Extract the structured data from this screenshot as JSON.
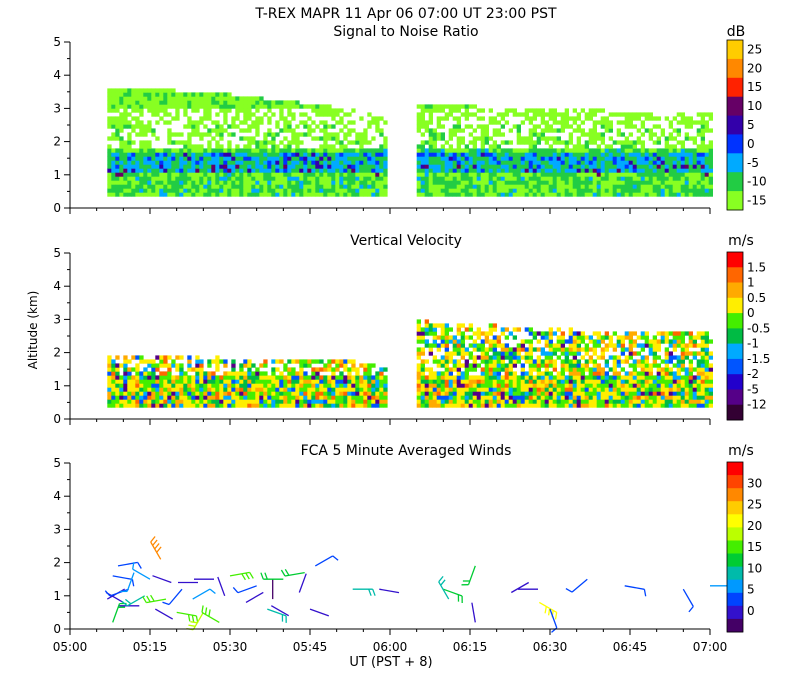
{
  "header": {
    "title": "T-REX   MAPR 11 Apr 06   07:00 UT   23:00   PST"
  },
  "xaxis": {
    "label": "UT  (PST + 8)",
    "tick_labels": [
      "05:00",
      "05:15",
      "05:30",
      "05:45",
      "06:00",
      "06:15",
      "06:30",
      "06:45",
      "07:00"
    ],
    "range_minutes": [
      300,
      420
    ]
  },
  "yaxis": {
    "label": "Altitude  (km)",
    "tick_labels": [
      "0",
      "1",
      "2",
      "3",
      "4",
      "5"
    ],
    "range_km": [
      0,
      5
    ]
  },
  "panels": [
    {
      "title": "Signal to Noise Ratio",
      "unit": "dB",
      "colorbar": {
        "labels": [
          "25",
          "20",
          "15",
          "10",
          "5",
          "0",
          "-5",
          "-10",
          "-15"
        ],
        "colors": [
          "#ffcc00",
          "#ff8800",
          "#ff2200",
          "#660066",
          "#3300aa",
          "#0033ff",
          "#00aaff",
          "#22cc44",
          "#88ff22"
        ]
      }
    },
    {
      "title": "Vertical Velocity",
      "unit": "m/s",
      "colorbar": {
        "labels": [
          "1.5",
          "1",
          "0.5",
          "0",
          "-0.5",
          "-1",
          "-1.5",
          "-2",
          "-5",
          "-12"
        ],
        "colors": [
          "#ff0000",
          "#ff6600",
          "#ffaa00",
          "#ffee00",
          "#44ee00",
          "#00bb44",
          "#00aaff",
          "#0055ff",
          "#2200cc",
          "#550088",
          "#330033"
        ]
      }
    },
    {
      "title": "FCA 5 Minute Averaged Winds",
      "unit": "m/s",
      "colorbar": {
        "labels": [
          "30",
          "25",
          "20",
          "15",
          "10",
          "5",
          "0"
        ],
        "colors": [
          "#ff0000",
          "#ff4400",
          "#ff8800",
          "#ffcc00",
          "#ffff00",
          "#bbff00",
          "#44ee00",
          "#00cc33",
          "#00bbaa",
          "#0099ff",
          "#0044ff",
          "#3311cc",
          "#440066"
        ]
      }
    }
  ],
  "chart_data": [
    {
      "type": "heatmap",
      "title": "Signal to Noise Ratio",
      "colorbar_label": "dB",
      "colorbar_ticks": [
        25,
        20,
        15,
        10,
        5,
        0,
        -5,
        -10,
        -15
      ],
      "x_range_minutes": [
        300,
        420
      ],
      "y_range_km": [
        0,
        5
      ],
      "segments": [
        {
          "start": 307,
          "end": 359,
          "top_km": [
            3.6,
            3.5,
            3.4,
            3.2,
            3.0,
            2.8
          ],
          "bottom_km": 0.35
        },
        {
          "start": 365,
          "end": 420,
          "top_km": [
            3.1,
            3.0,
            3.0,
            2.9,
            2.8,
            2.8
          ],
          "bottom_km": 0.35
        }
      ],
      "bands": [
        {
          "from_km": 0.35,
          "to_km": 1.0,
          "level": -10
        },
        {
          "from_km": 1.0,
          "to_km": 1.6,
          "level": -5
        },
        {
          "from_km": 1.6,
          "to_km": 2.4,
          "level": -10
        },
        {
          "from_km": 2.4,
          "to_km": 3.6,
          "level": -15
        }
      ],
      "xlabel": "UT  (PST + 8)",
      "ylabel": "Altitude  (km)"
    },
    {
      "type": "heatmap",
      "title": "Vertical Velocity",
      "colorbar_label": "m/s",
      "colorbar_ticks": [
        1.5,
        1,
        0.5,
        0,
        -0.5,
        -1,
        -1.5,
        -2,
        -5,
        -12
      ],
      "x_range_minutes": [
        300,
        420
      ],
      "y_range_km": [
        0,
        5
      ],
      "segments": [
        {
          "start": 307,
          "end": 359,
          "top_km": [
            1.9,
            1.8,
            1.8,
            1.7,
            1.8,
            1.5
          ],
          "bottom_km": 0.35
        },
        {
          "start": 365,
          "end": 420,
          "top_km": [
            2.9,
            2.8,
            2.7,
            2.6,
            2.6,
            2.6
          ],
          "bottom_km": 0.35
        }
      ],
      "xlabel": "UT  (PST + 8)",
      "ylabel": "Altitude  (km)"
    },
    {
      "type": "scatter",
      "title": "FCA 5 Minute Averaged Winds",
      "colorbar_label": "m/s",
      "colorbar_ticks": [
        30,
        25,
        20,
        15,
        10,
        5,
        0
      ],
      "x_range_minutes": [
        300,
        420
      ],
      "y_range_km": [
        0,
        5
      ],
      "barbs": [
        {
          "t": 307,
          "alt": 0.9,
          "dir": 60,
          "spd": 4
        },
        {
          "t": 308,
          "alt": 0.2,
          "dir": 20,
          "spd": 13
        },
        {
          "t": 308,
          "alt": 1.6,
          "dir": 100,
          "spd": 5
        },
        {
          "t": 309,
          "alt": 1.9,
          "dir": 80,
          "spd": 6
        },
        {
          "t": 310,
          "alt": 0.8,
          "dir": 300,
          "spd": 3
        },
        {
          "t": 311,
          "alt": 1.2,
          "dir": 250,
          "spd": 5
        },
        {
          "t": 312,
          "alt": 1.7,
          "dir": 200,
          "spd": 8
        },
        {
          "t": 313,
          "alt": 0.7,
          "dir": 270,
          "spd": 2
        },
        {
          "t": 314,
          "alt": 1.0,
          "dir": 240,
          "spd": 10
        },
        {
          "t": 315,
          "alt": 1.5,
          "dir": 300,
          "spd": 7
        },
        {
          "t": 316,
          "alt": 0.6,
          "dir": 120,
          "spd": 4
        },
        {
          "t": 317,
          "alt": 2.1,
          "dir": 330,
          "spd": 27
        },
        {
          "t": 318,
          "alt": 0.9,
          "dir": 260,
          "spd": 15
        },
        {
          "t": 319,
          "alt": 1.4,
          "dir": 290,
          "spd": 3
        },
        {
          "t": 320,
          "alt": 0.5,
          "dir": 100,
          "spd": 16
        },
        {
          "t": 321,
          "alt": 1.2,
          "dir": 220,
          "spd": 5
        },
        {
          "t": 323,
          "alt": 0.9,
          "dir": 60,
          "spd": 8
        },
        {
          "t": 324,
          "alt": 1.4,
          "dir": 270,
          "spd": 2
        },
        {
          "t": 325,
          "alt": 0.5,
          "dir": 210,
          "spd": 18
        },
        {
          "t": 327,
          "alt": 1.5,
          "dir": 270,
          "spd": 4
        },
        {
          "t": 328,
          "alt": 0.2,
          "dir": 300,
          "spd": 17
        },
        {
          "t": 329,
          "alt": 1.0,
          "dir": 340,
          "spd": 3
        },
        {
          "t": 330,
          "alt": 1.6,
          "dir": 80,
          "spd": 16
        },
        {
          "t": 333,
          "alt": 0.8,
          "dir": 60,
          "spd": 2
        },
        {
          "t": 335,
          "alt": 1.3,
          "dir": 250,
          "spd": 5
        },
        {
          "t": 337,
          "alt": 0.6,
          "dir": 110,
          "spd": 12
        },
        {
          "t": 338,
          "alt": 0.9,
          "dir": 0,
          "spd": 1
        },
        {
          "t": 340,
          "alt": 1.5,
          "dir": 270,
          "spd": 14
        },
        {
          "t": 341,
          "alt": 0.4,
          "dir": 300,
          "spd": 3
        },
        {
          "t": 343,
          "alt": 1.1,
          "dir": 20,
          "spd": 4
        },
        {
          "t": 344,
          "alt": 1.7,
          "dir": 260,
          "spd": 14
        },
        {
          "t": 345,
          "alt": 0.6,
          "dir": 110,
          "spd": 4
        },
        {
          "t": 346,
          "alt": 1.9,
          "dir": 60,
          "spd": 5
        },
        {
          "t": 353,
          "alt": 1.2,
          "dir": 90,
          "spd": 12
        },
        {
          "t": 358,
          "alt": 1.2,
          "dir": 100,
          "spd": 4
        },
        {
          "t": 370,
          "alt": 1.2,
          "dir": 110,
          "spd": 13
        },
        {
          "t": 371,
          "alt": 0.9,
          "dir": 330,
          "spd": 12
        },
        {
          "t": 376,
          "alt": 1.9,
          "dir": 200,
          "spd": 14
        },
        {
          "t": 376,
          "alt": 0.2,
          "dir": 350,
          "spd": 2
        },
        {
          "t": 384,
          "alt": 1.2,
          "dir": 90,
          "spd": 3
        },
        {
          "t": 386,
          "alt": 1.4,
          "dir": 240,
          "spd": 4
        },
        {
          "t": 388,
          "alt": 0.8,
          "dir": 120,
          "spd": 22
        },
        {
          "t": 390,
          "alt": 0.6,
          "dir": 160,
          "spd": 6
        },
        {
          "t": 397,
          "alt": 1.5,
          "dir": 230,
          "spd": 5
        },
        {
          "t": 404,
          "alt": 1.3,
          "dir": 100,
          "spd": 6
        },
        {
          "t": 415,
          "alt": 1.2,
          "dir": 150,
          "spd": 5
        },
        {
          "t": 420,
          "alt": 1.3,
          "dir": 90,
          "spd": 7
        }
      ],
      "xlabel": "UT  (PST + 8)",
      "ylabel": "Altitude  (km)"
    }
  ]
}
